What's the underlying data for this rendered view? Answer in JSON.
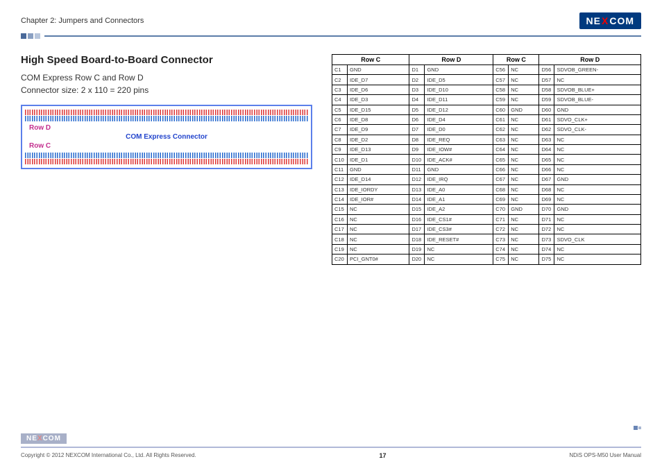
{
  "header": {
    "chapter": "Chapter 2: Jumpers and Connectors",
    "logo_pre": "NE",
    "logo_x": "X",
    "logo_post": "COM"
  },
  "left": {
    "title": "High Speed Board-to-Board Connector",
    "sub1": "COM Express Row C and Row D",
    "sub2": "Connector size: 2 x 110 = 220 pins",
    "rowD": "Row D",
    "connLabel": "COM Express Connector",
    "rowC": "Row C"
  },
  "table": {
    "headers": [
      "Row C",
      "Row D",
      "Row C",
      "Row D"
    ],
    "rows": [
      [
        "C1",
        "GND",
        "D1",
        "GND",
        "C56",
        "NC",
        "D56",
        "SDVOB_GREEN-"
      ],
      [
        "C2",
        "IDE_D7",
        "D2",
        "IDE_D5",
        "C57",
        "NC",
        "D57",
        "NC"
      ],
      [
        "C3",
        "IDE_D6",
        "D3",
        "IDE_D10",
        "C58",
        "NC",
        "D58",
        "SDVOB_BLUE+"
      ],
      [
        "C4",
        "IDE_D3",
        "D4",
        "IDE_D11",
        "C59",
        "NC",
        "D59",
        "SDVOB_BLUE-"
      ],
      [
        "C5",
        "IDE_D15",
        "D5",
        "IDE_D12",
        "C60",
        "GND",
        "D60",
        "GND"
      ],
      [
        "C6",
        "IDE_D8",
        "D6",
        "IDE_D4",
        "C61",
        "NC",
        "D61",
        "SDVO_CLK+"
      ],
      [
        "C7",
        "IDE_D9",
        "D7",
        "IDE_D0",
        "C62",
        "NC",
        "D62",
        "SDVO_CLK-"
      ],
      [
        "C8",
        "IDE_D2",
        "D8",
        "IDE_REQ",
        "C63",
        "NC",
        "D63",
        "NC"
      ],
      [
        "C9",
        "IDE_D13",
        "D9",
        "IDE_IOW#",
        "C64",
        "NC",
        "D64",
        "NC"
      ],
      [
        "C10",
        "IDE_D1",
        "D10",
        "IDE_ACK#",
        "C65",
        "NC",
        "D65",
        "NC"
      ],
      [
        "C11",
        "GND",
        "D11",
        "GND",
        "C66",
        "NC",
        "D66",
        "NC"
      ],
      [
        "C12",
        "IDE_D14",
        "D12",
        "IDE_IRQ",
        "C67",
        "NC",
        "D67",
        "GND"
      ],
      [
        "C13",
        "IDE_IORDY",
        "D13",
        "IDE_A0",
        "C68",
        "NC",
        "D68",
        "NC"
      ],
      [
        "C14",
        "IDE_IOR#",
        "D14",
        "IDE_A1",
        "C69",
        "NC",
        "D69",
        "NC"
      ],
      [
        "C15",
        "NC",
        "D15",
        "IDE_A2",
        "C70",
        "GND",
        "D70",
        "GND"
      ],
      [
        "C16",
        "NC",
        "D16",
        "IDE_CS1#",
        "C71",
        "NC",
        "D71",
        "NC"
      ],
      [
        "C17",
        "NC",
        "D17",
        "IDE_CS3#",
        "C72",
        "NC",
        "D72",
        "NC"
      ],
      [
        "C18",
        "NC",
        "D18",
        "IDE_RESET#",
        "C73",
        "NC",
        "D73",
        "SDVO_CLK"
      ],
      [
        "C19",
        "NC",
        "D19",
        "NC",
        "C74",
        "NC",
        "D74",
        "NC"
      ],
      [
        "C20",
        "PCI_GNT0#",
        "D20",
        "NC",
        "C75",
        "NC",
        "D75",
        "NC"
      ]
    ]
  },
  "footer": {
    "copyright": "Copyright © 2012 NEXCOM International Co., Ltd. All Rights Reserved.",
    "page": "17",
    "manual": "NDiS OPS-M50 User Manual"
  }
}
